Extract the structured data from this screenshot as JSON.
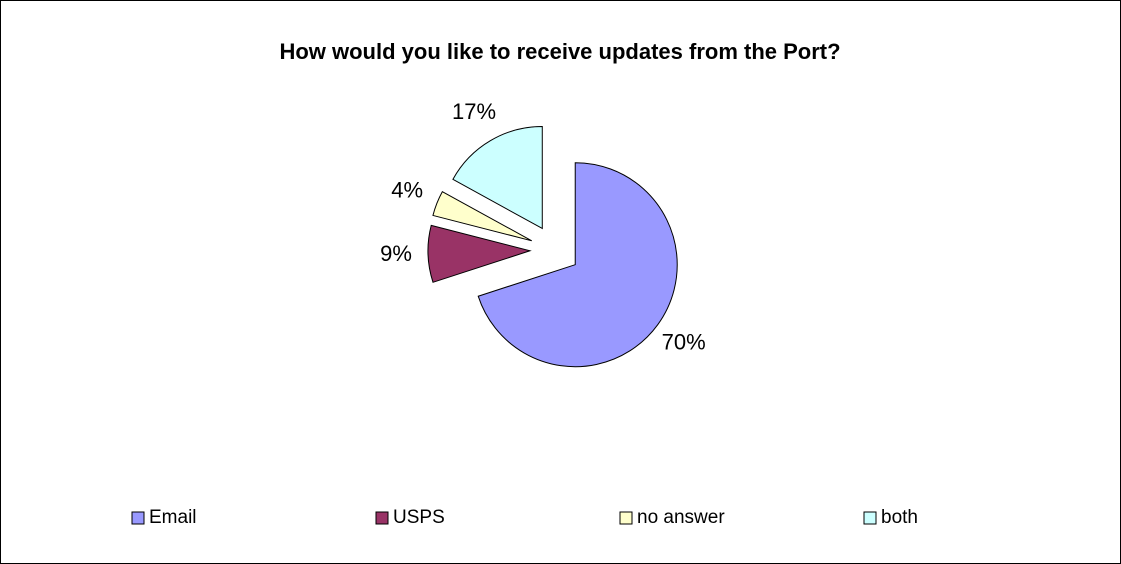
{
  "chart_data": {
    "type": "pie",
    "title": "How would you like to receive updates from the Port?",
    "categories": [
      "Email",
      "USPS",
      "no answer",
      "both"
    ],
    "values": [
      70,
      9,
      4,
      17
    ],
    "value_labels": [
      "70%",
      "9%",
      "4%",
      "17%"
    ],
    "colors": [
      "#9999ff",
      "#993366",
      "#ffffcc",
      "#ccffff"
    ],
    "legend": "bottom"
  }
}
